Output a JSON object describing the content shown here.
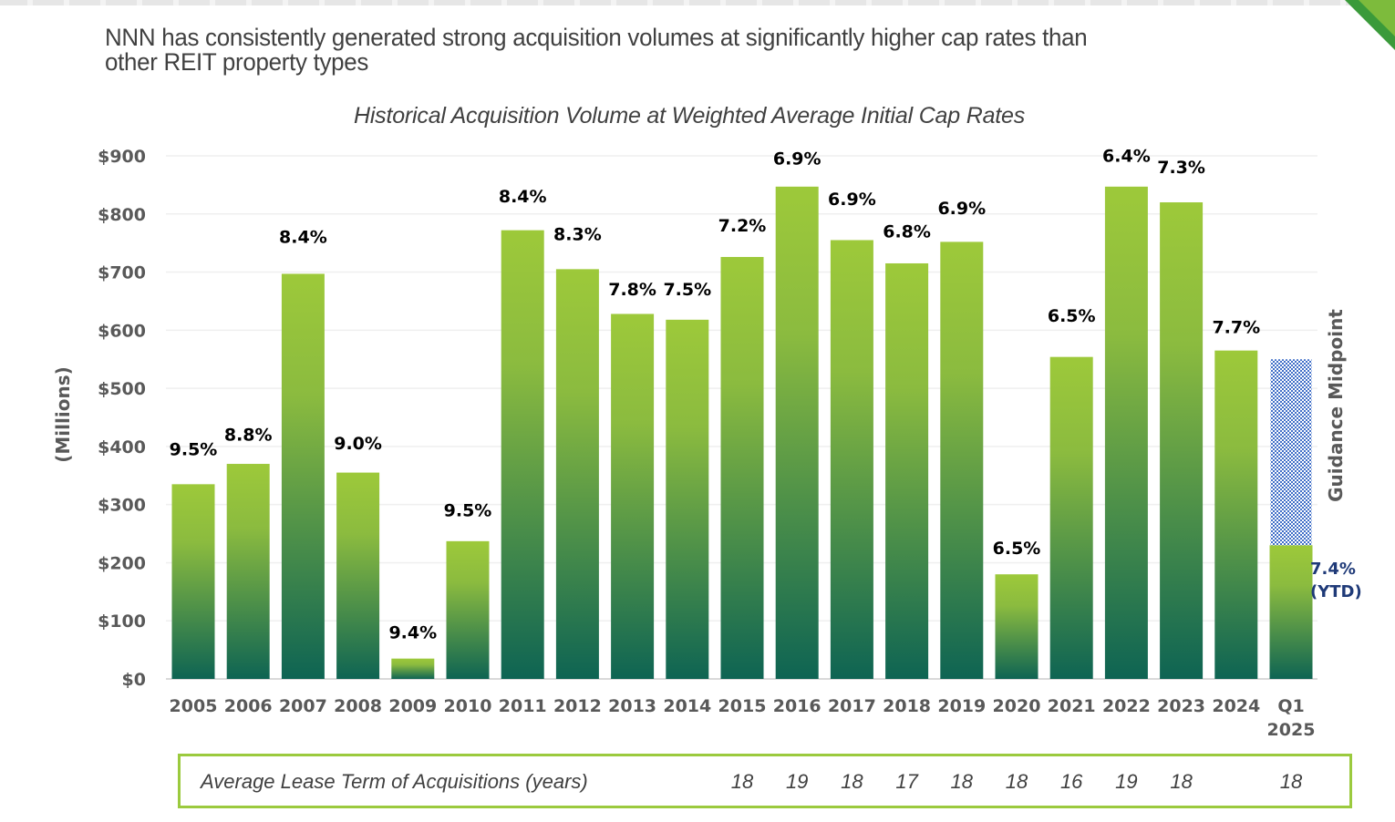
{
  "headline": "NNN has consistently generated strong acquisition volumes at significantly higher cap rates than other REIT property types",
  "headline_lines": [
    "NNN has consistently generated strong acquisition volumes at significantly higher cap rates than",
    "other REIT property types"
  ],
  "colors": {
    "bar_top": "#9dc93a",
    "bar_bottom": "#0e6453",
    "guidance_pattern": "#3f6ec7",
    "axis_text": "#595959",
    "label_text": "#000000",
    "ytd_text": "#1f3a78",
    "box_border": "#9bca3e"
  },
  "chart_data": {
    "type": "bar",
    "title": "Historical Acquisition Volume at Weighted Average Initial Cap Rates",
    "xlabel": "",
    "ylabel": "(Millions)",
    "ylim": [
      0,
      900
    ],
    "yticks": [
      0,
      100,
      200,
      300,
      400,
      500,
      600,
      700,
      800,
      900
    ],
    "ytick_labels": [
      "$0",
      "$100",
      "$200",
      "$300",
      "$400",
      "$500",
      "$600",
      "$700",
      "$800",
      "$900"
    ],
    "grid": true,
    "categories": [
      "2005",
      "2006",
      "2007",
      "2008",
      "2009",
      "2010",
      "2011",
      "2012",
      "2013",
      "2014",
      "2015",
      "2016",
      "2017",
      "2018",
      "2019",
      "2020",
      "2021",
      "2022",
      "2023",
      "2024",
      "Q1 2025"
    ],
    "category_lines": [
      [
        "2005"
      ],
      [
        "2006"
      ],
      [
        "2007"
      ],
      [
        "2008"
      ],
      [
        "2009"
      ],
      [
        "2010"
      ],
      [
        "2011"
      ],
      [
        "2012"
      ],
      [
        "2013"
      ],
      [
        "2014"
      ],
      [
        "2015"
      ],
      [
        "2016"
      ],
      [
        "2017"
      ],
      [
        "2018"
      ],
      [
        "2019"
      ],
      [
        "2020"
      ],
      [
        "2021"
      ],
      [
        "2022"
      ],
      [
        "2023"
      ],
      [
        "2024"
      ],
      [
        "Q1",
        "2025"
      ]
    ],
    "series": [
      {
        "name": "Acquisition Volume ($M)",
        "values": [
          335,
          370,
          697,
          355,
          35,
          237,
          772,
          705,
          628,
          618,
          726,
          847,
          755,
          715,
          752,
          180,
          554,
          847,
          820,
          565,
          230
        ]
      },
      {
        "name": "Guidance Midpoint (remaining)",
        "category": "Q1 2025",
        "base": 230,
        "top": 550
      }
    ],
    "cap_rate_labels": [
      "9.5%",
      "8.8%",
      "8.4%",
      "9.0%",
      "9.4%",
      "9.5%",
      "8.4%",
      "8.3%",
      "7.8%",
      "7.5%",
      "7.2%",
      "6.9%",
      "6.9%",
      "6.8%",
      "6.9%",
      "6.5%",
      "6.5%",
      "6.4%",
      "7.3%",
      "7.7%",
      null
    ],
    "label_values_dollars": [
      385,
      410,
      750,
      395,
      70,
      280,
      820,
      755,
      660,
      660,
      770,
      885,
      815,
      760,
      800,
      215,
      615,
      890,
      870,
      595,
      null
    ],
    "ytd_annotation": [
      "7.4%",
      "(YTD)"
    ],
    "guidance_annotation": "Guidance Midpoint"
  },
  "lease_term": {
    "label": "Average Lease Term of Acquisitions (years)",
    "values": [
      {
        "year": "2015",
        "value": "18"
      },
      {
        "year": "2016",
        "value": "19"
      },
      {
        "year": "2017",
        "value": "18"
      },
      {
        "year": "2018",
        "value": "17"
      },
      {
        "year": "2019",
        "value": "18"
      },
      {
        "year": "2020",
        "value": "18"
      },
      {
        "year": "2021",
        "value": "16"
      },
      {
        "year": "2022",
        "value": "19"
      },
      {
        "year": "2023",
        "value": "18"
      },
      {
        "year": "Q1 2025",
        "value": "18"
      }
    ]
  }
}
